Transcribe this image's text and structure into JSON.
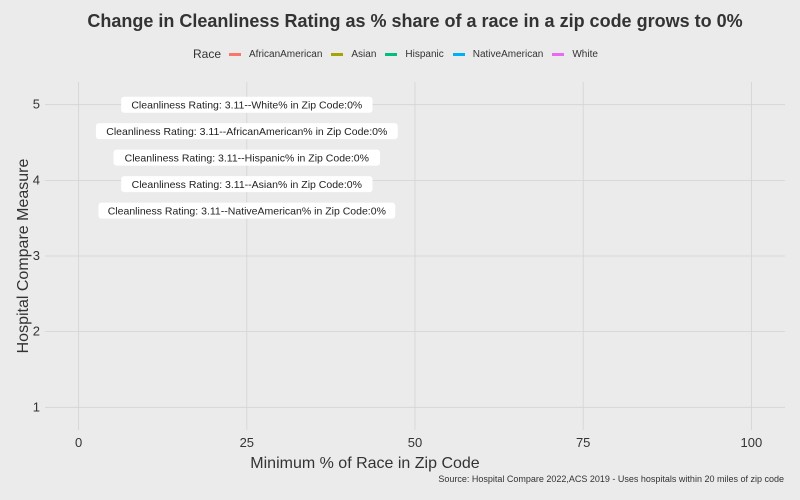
{
  "chart_data": {
    "type": "scatter",
    "title": "Change in Cleanliness Rating as % share of a race in a zip code grows to 0%",
    "xlabel": "Minimum % of Race in Zip Code",
    "ylabel": "Hospital Compare Measure",
    "xlim": [
      -5,
      105
    ],
    "ylim": [
      0.7,
      5.3
    ],
    "x_ticks": [
      0,
      25,
      50,
      75,
      100
    ],
    "y_ticks": [
      1,
      2,
      3,
      4,
      5
    ],
    "grid": true,
    "legend": {
      "title": "Race",
      "position": "top",
      "entries": [
        {
          "name": "AfricanAmerican",
          "color": "#f8766d"
        },
        {
          "name": "Asian",
          "color": "#a3a500"
        },
        {
          "name": "Hispanic",
          "color": "#00bf7d"
        },
        {
          "name": "NativeAmerican",
          "color": "#00b0f6"
        },
        {
          "name": "White",
          "color": "#e76bf3"
        }
      ]
    },
    "annotations": [
      {
        "text": "Cleanliness Rating: 3.11--White% in Zip Code:0%",
        "x": 25,
        "y": 5.0
      },
      {
        "text": "Cleanliness Rating: 3.11--AfricanAmerican% in Zip Code:0%",
        "x": 25,
        "y": 4.65
      },
      {
        "text": "Cleanliness Rating: 3.11--Hispanic% in Zip Code:0%",
        "x": 25,
        "y": 4.3
      },
      {
        "text": "Cleanliness Rating: 3.11--Asian% in Zip Code:0%",
        "x": 25,
        "y": 3.95
      },
      {
        "text": "Cleanliness Rating: 3.11--NativeAmerican% in Zip Code:0%",
        "x": 25,
        "y": 3.6
      }
    ],
    "caption": "Source: Hospital Compare 2022,ACS 2019 - Uses hospitals within 20 miles of zip code"
  }
}
